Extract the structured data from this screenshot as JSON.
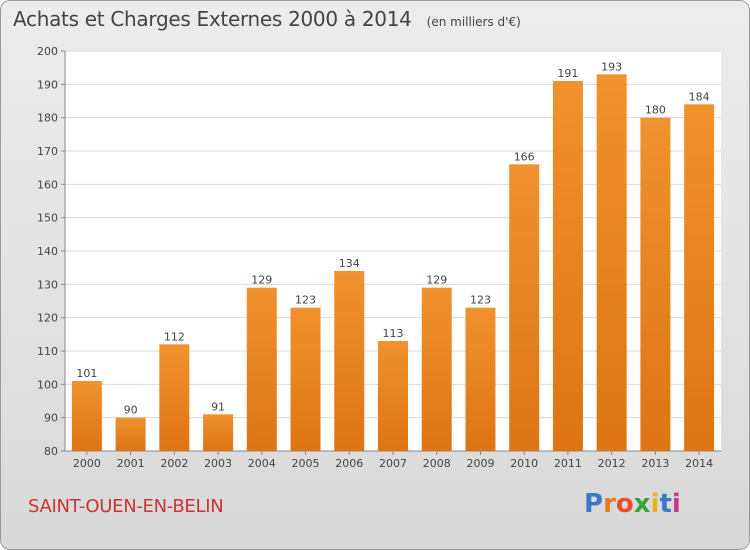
{
  "title": "Achats et Charges Externes 2000 à 2014",
  "unit": "(en milliers d'€)",
  "city": "SAINT-OUEN-EN-BELIN",
  "logo": {
    "letters": [
      "P",
      "r",
      "o",
      "x",
      "i",
      "t",
      "i"
    ],
    "colors": [
      "#3a78c8",
      "#e87a1e",
      "#e84e2c",
      "#3aa23a",
      "#e8b21e",
      "#3a78c8",
      "#cc3a8a"
    ]
  },
  "colors": {
    "bar": "#f0922e",
    "bar_dark": "#de7414",
    "plot_bg": "#ffffff",
    "grid": "#d9d9d9"
  },
  "chart_data": {
    "type": "bar",
    "categories": [
      "2000",
      "2001",
      "2002",
      "2003",
      "2004",
      "2005",
      "2006",
      "2007",
      "2008",
      "2009",
      "2010",
      "2011",
      "2012",
      "2013",
      "2014"
    ],
    "values": [
      101,
      90,
      112,
      91,
      129,
      123,
      134,
      113,
      129,
      123,
      166,
      191,
      193,
      180,
      184
    ],
    "ylim": [
      80,
      200
    ],
    "yticks": [
      80,
      90,
      100,
      110,
      120,
      130,
      140,
      150,
      160,
      170,
      180,
      190,
      200
    ],
    "grid": true
  }
}
